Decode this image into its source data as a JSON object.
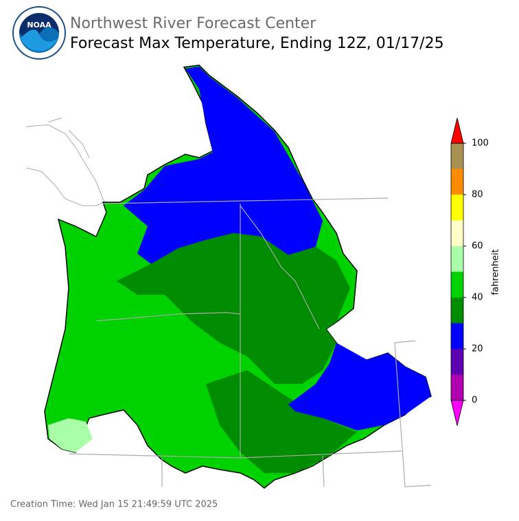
{
  "header": {
    "logo_text": "NOAA",
    "title": "Northwest River Forecast Center",
    "subtitle": "Forecast Max Temperature, Ending 12Z, 01/17/25"
  },
  "colorbar": {
    "label": "fahrenheit",
    "lim": [
      0,
      100
    ],
    "bounds": [
      0,
      10,
      20,
      30,
      40,
      50,
      60,
      70,
      80,
      90,
      100
    ],
    "colors": [
      "#b000b0",
      "#5c00b0",
      "#0000ff",
      "#008c00",
      "#00d200",
      "#a8ffa8",
      "#ffffc8",
      "#ffff00",
      "#ff8c00",
      "#a89050"
    ],
    "under_color": "#ff00ff",
    "over_color": "#ff0000",
    "ticks": [
      0,
      20,
      40,
      60,
      80,
      100
    ]
  },
  "footer": {
    "creation_time": "Creation Time: Wed Jan 15 21:49:59 UTC 2025"
  }
}
